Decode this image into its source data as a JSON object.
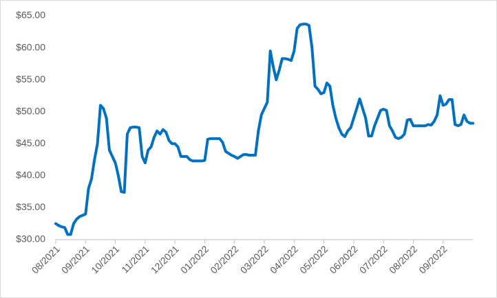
{
  "chart_data": {
    "type": "line",
    "categories": [
      "08/2021",
      null,
      null,
      null,
      null,
      null,
      null,
      null,
      null,
      null,
      "09/2021",
      null,
      null,
      null,
      null,
      null,
      null,
      null,
      null,
      null,
      "10/2021",
      null,
      null,
      null,
      null,
      null,
      null,
      null,
      null,
      null,
      "11/2021",
      null,
      null,
      null,
      null,
      null,
      null,
      null,
      null,
      null,
      "12/2021",
      null,
      null,
      null,
      null,
      null,
      null,
      null,
      null,
      null,
      "01/2022",
      null,
      null,
      null,
      null,
      null,
      null,
      null,
      null,
      null,
      "02/2022",
      null,
      null,
      null,
      null,
      null,
      null,
      null,
      null,
      null,
      "03/2022",
      null,
      null,
      null,
      null,
      null,
      null,
      null,
      null,
      null,
      "04/2022",
      null,
      null,
      null,
      null,
      null,
      null,
      null,
      null,
      null,
      "05/2022",
      null,
      null,
      null,
      null,
      null,
      null,
      null,
      null,
      null,
      "06/2022",
      null,
      null,
      null,
      null,
      null,
      null,
      null,
      null,
      null,
      "07/2022",
      null,
      null,
      null,
      null,
      null,
      null,
      null,
      null,
      null,
      "08/2022",
      null,
      null,
      null,
      null,
      null,
      null,
      null,
      null,
      null,
      "09/2022",
      null,
      null,
      null,
      null,
      null,
      null,
      null,
      null,
      null,
      null
    ],
    "series": [
      {
        "color": "#0070c0",
        "values": [
          32.5,
          32.2,
          32.0,
          31.9,
          30.8,
          30.8,
          32.5,
          33.2,
          33.6,
          33.8,
          34.0,
          38.0,
          39.5,
          42.5,
          45.0,
          51.0,
          50.5,
          49.0,
          44.0,
          43.0,
          42.0,
          40.0,
          37.5,
          37.4,
          46.5,
          47.5,
          47.6,
          47.6,
          47.5,
          43.0,
          42.0,
          44.0,
          44.5,
          46.0,
          47.0,
          46.5,
          47.2,
          46.8,
          45.5,
          45.0,
          45.0,
          44.5,
          43.0,
          43.0,
          43.0,
          42.5,
          42.3,
          42.3,
          42.3,
          42.3,
          42.4,
          45.7,
          45.8,
          45.8,
          45.8,
          45.8,
          45.2,
          43.8,
          43.5,
          43.2,
          43.0,
          42.7,
          43.0,
          43.3,
          43.3,
          43.2,
          43.2,
          43.2,
          47.0,
          49.5,
          50.5,
          51.5,
          59.5,
          57.0,
          55.0,
          56.5,
          58.3,
          58.3,
          58.2,
          58.0,
          59.5,
          63.0,
          63.6,
          63.7,
          63.7,
          63.5,
          60.0,
          54.0,
          53.5,
          52.8,
          53.0,
          54.5,
          54.0,
          51.0,
          49.0,
          47.5,
          46.5,
          46.1,
          47.0,
          47.5,
          49.0,
          50.5,
          52.0,
          50.5,
          49.0,
          46.2,
          46.2,
          47.8,
          49.0,
          50.2,
          50.4,
          50.2,
          47.8,
          47.0,
          46.0,
          45.8,
          46.0,
          46.5,
          48.7,
          48.8,
          47.8,
          47.8,
          47.8,
          47.8,
          47.8,
          48.0,
          47.9,
          48.5,
          49.5,
          52.5,
          51.0,
          51.2,
          51.9,
          51.9,
          48.0,
          47.8,
          48.0,
          49.5,
          48.5,
          48.2,
          48.2
        ]
      }
    ],
    "ylim": [
      30,
      65
    ],
    "yticks": [
      {
        "value": 30,
        "label": "$30.00"
      },
      {
        "value": 35,
        "label": "$35.00"
      },
      {
        "value": 40,
        "label": "$40.00"
      },
      {
        "value": 45,
        "label": "$45.00"
      },
      {
        "value": 50,
        "label": "$50.00"
      },
      {
        "value": 55,
        "label": "$55.00"
      },
      {
        "value": 60,
        "label": "$60.00"
      },
      {
        "value": 65,
        "label": "$65.00"
      }
    ],
    "grid": false
  }
}
